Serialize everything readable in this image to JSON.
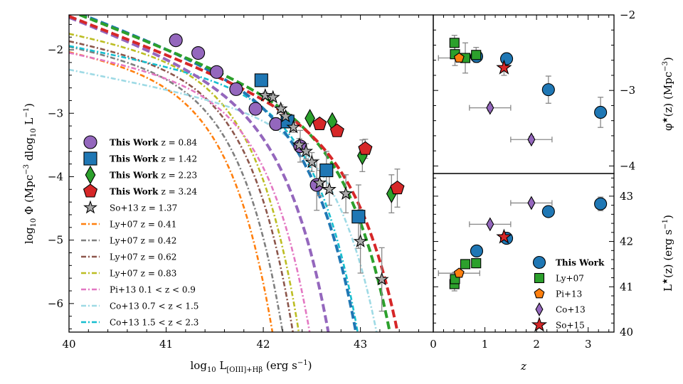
{
  "chart_data": [
    {
      "id": "lf",
      "type": "scatter",
      "xlabel": "log10 L[OIII]+Hβ (erg s−1)",
      "ylabel": "log10 Φ (Mpc−3 dlog10 L−1)",
      "xlim": [
        40.0,
        43.75
      ],
      "ylim": [
        -6.45,
        -1.45
      ],
      "xticks": [
        40,
        41,
        42,
        43
      ],
      "yticks": [
        -2,
        -3,
        -4,
        -5,
        -6
      ],
      "grid": false,
      "legend_position": "left",
      "series": [
        {
          "name": "This Work z = 0.84",
          "kind": "points",
          "marker": "circle",
          "color": "#9467bd",
          "x": [
            41.1,
            41.33,
            41.52,
            41.72,
            41.92,
            42.13,
            42.38,
            42.55
          ],
          "y": [
            -1.85,
            -2.05,
            -2.35,
            -2.62,
            -2.93,
            -3.17,
            -3.52,
            -4.13
          ],
          "yerr": [
            0.05,
            0.05,
            0.05,
            0.06,
            0.08,
            0.1,
            0.25,
            0.4
          ]
        },
        {
          "name": "This Work z = 1.42",
          "kind": "points",
          "marker": "square",
          "color": "#1f77b4",
          "x": [
            41.98,
            42.25,
            42.65,
            42.98
          ],
          "y": [
            -2.48,
            -3.13,
            -3.9,
            -4.63
          ],
          "yerr": [
            0.05,
            0.1,
            0.3,
            0.5
          ]
        },
        {
          "name": "This Work z = 2.23",
          "kind": "points",
          "marker": "diamond",
          "color": "#2ca02c",
          "x": [
            42.48,
            42.71,
            43.02,
            43.32
          ],
          "y": [
            -3.08,
            -3.13,
            -3.67,
            -4.27
          ],
          "yerr": [
            0.05,
            0.07,
            0.25,
            0.3
          ]
        },
        {
          "name": "This Work z = 3.24",
          "kind": "points",
          "marker": "pentagon",
          "color": "#d62728",
          "x": [
            42.58,
            42.76,
            43.05,
            43.38
          ],
          "y": [
            -3.17,
            -3.28,
            -3.56,
            -4.18
          ],
          "yerr": [
            0.05,
            0.07,
            0.15,
            0.3
          ]
        },
        {
          "name": "So+13 z = 1.37",
          "kind": "points",
          "marker": "star",
          "color": "#aaaaaa",
          "x": [
            42.02,
            42.1,
            42.18,
            42.23,
            42.31,
            42.37,
            42.44,
            42.5,
            42.58,
            42.68,
            42.85,
            43.0,
            43.22
          ],
          "y": [
            -2.72,
            -2.75,
            -2.93,
            -3.05,
            -3.22,
            -3.5,
            -3.6,
            -3.77,
            -4.1,
            -4.2,
            -4.27,
            -5.02,
            -5.62
          ],
          "yerr": [
            0.05,
            0.05,
            0.06,
            0.07,
            0.08,
            0.1,
            0.12,
            0.15,
            0.2,
            0.25,
            0.3,
            0.5,
            0.5
          ]
        },
        {
          "name": "Ly+07 z = 0.41",
          "kind": "curve",
          "style": "dashdot",
          "color": "#ff7f0e",
          "Lstar": 41.15,
          "logphi": -2.35,
          "alpha": -1.3
        },
        {
          "name": "Ly+07 z = 0.42",
          "kind": "curve",
          "style": "dashdot",
          "color": "#7f7f7f",
          "Lstar": 41.25,
          "logphi": -2.3,
          "alpha": -1.3
        },
        {
          "name": "Ly+07 z = 0.62",
          "kind": "curve",
          "style": "dashdot",
          "color": "#8c564b",
          "Lstar": 41.35,
          "logphi": -2.25,
          "alpha": -1.3
        },
        {
          "name": "Ly+07 z = 0.83",
          "kind": "curve",
          "style": "dashdot",
          "color": "#bcbd22",
          "Lstar": 41.4,
          "logphi": -2.15,
          "alpha": -1.3
        },
        {
          "name": "Pi+13 0.1 < z < 0.9",
          "kind": "curve",
          "style": "dashdot",
          "color": "#e377c2",
          "Lstar": 41.55,
          "logphi": -2.5,
          "alpha": -1.3
        },
        {
          "name": "Co+13 0.7 < z < 1.5",
          "kind": "curve",
          "style": "dashdot",
          "color": "#9edae5",
          "Lstar": 42.3,
          "logphi": -3.0,
          "alpha": -1.3
        },
        {
          "name": "Co+13 1.5 < z < 2.3",
          "kind": "curve",
          "style": "dashdot",
          "color": "#17becf",
          "Lstar": 42.05,
          "logphi": -2.55,
          "alpha": -1.3
        },
        {
          "name": "This Work z = 0.84 fit",
          "kind": "curve",
          "style": "dashed",
          "color": "#9467bd",
          "Lstar": 41.78,
          "logphi": -2.55,
          "alpha": -1.6
        },
        {
          "name": "This Work z = 1.42 fit",
          "kind": "curve",
          "style": "dashed",
          "color": "#1f77b4",
          "Lstar": 42.07,
          "logphi": -2.6,
          "alpha": -1.6
        },
        {
          "name": "This Work z = 2.23 fit",
          "kind": "curve",
          "style": "dashed",
          "color": "#2ca02c",
          "Lstar": 42.45,
          "logphi": -2.85,
          "alpha": -1.6
        },
        {
          "name": "This Work z = 3.24 fit",
          "kind": "curve",
          "style": "dashed",
          "color": "#d62728",
          "Lstar": 42.55,
          "logphi": -3.0,
          "alpha": -1.6
        }
      ],
      "legend": [
        {
          "label": "This Work",
          "rest": "z = 0.84",
          "marker": "circle",
          "color": "#9467bd"
        },
        {
          "label": "This Work",
          "rest": "z = 1.42",
          "marker": "square",
          "color": "#1f77b4"
        },
        {
          "label": "This Work",
          "rest": "z = 2.23",
          "marker": "diamond",
          "color": "#2ca02c"
        },
        {
          "label": "This Work",
          "rest": "z = 3.24",
          "marker": "pentagon",
          "color": "#d62728"
        },
        {
          "label": "",
          "rest": "So+13 z = 1.37",
          "marker": "star",
          "color": "#aaaaaa"
        },
        {
          "label": "",
          "rest": "Ly+07 z = 0.41",
          "line": "#ff7f0e"
        },
        {
          "label": "",
          "rest": "Ly+07 z = 0.42",
          "line": "#7f7f7f"
        },
        {
          "label": "",
          "rest": "Ly+07 z = 0.62",
          "line": "#8c564b"
        },
        {
          "label": "",
          "rest": "Ly+07 z = 0.83",
          "line": "#bcbd22"
        },
        {
          "label": "",
          "rest": "Pi+13 0.1 < z < 0.9",
          "line": "#e377c2"
        },
        {
          "label": "",
          "rest": "Co+13 0.7 < z < 1.5",
          "line": "#9edae5"
        },
        {
          "label": "",
          "rest": "Co+13 1.5 < z < 2.3",
          "line": "#17becf"
        }
      ]
    },
    {
      "id": "phi",
      "type": "scatter",
      "xlabel": "z",
      "ylabel": "φ★(z) (Mpc−3)",
      "xlim": [
        0,
        3.5
      ],
      "ylim": [
        -4.1,
        -2.0
      ],
      "yticks": [
        -2,
        -3,
        -4
      ],
      "xticks": [],
      "grid": false,
      "series": [
        {
          "name": "This Work",
          "marker": "circle",
          "color": "#1f77b4",
          "x": [
            0.84,
            1.42,
            2.23,
            3.24
          ],
          "y": [
            -2.55,
            -2.58,
            -2.99,
            -3.29
          ],
          "xerr": [
            0.05,
            0.05,
            0.05,
            0.05
          ],
          "yerr": [
            0.03,
            0.07,
            0.18,
            0.2
          ]
        },
        {
          "name": "Ly+07",
          "marker": "square",
          "color": "#2ca02c",
          "x": [
            0.41,
            0.42,
            0.62,
            0.83
          ],
          "y": [
            -2.37,
            -2.52,
            -2.57,
            -2.53
          ],
          "xerr": [
            0,
            0,
            0,
            0
          ],
          "yerr": [
            0.1,
            0.15,
            0.2,
            0.1
          ]
        },
        {
          "name": "Pi+13",
          "marker": "pentagon",
          "color": "#ff7f0e",
          "x": [
            0.5
          ],
          "y": [
            -2.57
          ],
          "xerr": [
            0.4
          ],
          "yerr": [
            0.02
          ]
        },
        {
          "name": "Co+13",
          "marker": "diamond",
          "color": "#9467bd",
          "x": [
            1.1,
            1.9
          ],
          "y": [
            -3.23,
            -3.65
          ],
          "xerr": [
            0.4,
            0.4
          ],
          "yerr": [
            0.04,
            0.04
          ]
        },
        {
          "name": "So+15",
          "marker": "star",
          "color": "#d62728",
          "x": [
            1.37
          ],
          "y": [
            -2.7
          ],
          "xerr": [
            0
          ],
          "yerr": [
            0.1
          ]
        }
      ]
    },
    {
      "id": "lstar",
      "type": "scatter",
      "xlabel": "z",
      "ylabel": "L★(z) (erg s−1)",
      "xlim": [
        0,
        3.5
      ],
      "ylim": [
        40.0,
        43.5
      ],
      "yticks": [
        40,
        41,
        42,
        43
      ],
      "xticks": [
        0,
        1,
        2,
        3
      ],
      "grid": false,
      "legend_position": "bottom-right",
      "series": [
        {
          "name": "This Work",
          "marker": "circle",
          "color": "#1f77b4",
          "x": [
            0.84,
            1.42,
            2.23,
            3.24
          ],
          "y": [
            41.79,
            42.07,
            42.66,
            42.83
          ],
          "xerr": [
            0.05,
            0.05,
            0.05,
            0.05
          ],
          "yerr": [
            0.05,
            0.05,
            0.08,
            0.15
          ]
        },
        {
          "name": "Ly+07",
          "marker": "square",
          "color": "#2ca02c",
          "x": [
            0.41,
            0.42,
            0.62,
            0.83
          ],
          "y": [
            41.06,
            41.17,
            41.5,
            41.52
          ],
          "xerr": [
            0,
            0,
            0,
            0
          ],
          "yerr": [
            0.15,
            0.15,
            0.1,
            0.1
          ]
        },
        {
          "name": "Pi+13",
          "marker": "pentagon",
          "color": "#ff7f0e",
          "x": [
            0.5
          ],
          "y": [
            41.3
          ],
          "xerr": [
            0.4
          ],
          "yerr": [
            0.02
          ]
        },
        {
          "name": "Co+13",
          "marker": "diamond",
          "color": "#9467bd",
          "x": [
            1.1,
            1.9
          ],
          "y": [
            42.38,
            42.85
          ],
          "xerr": [
            0.4,
            0.4
          ],
          "yerr": [
            0.02,
            0.02
          ]
        },
        {
          "name": "So+15",
          "marker": "star",
          "color": "#d62728",
          "x": [
            1.37
          ],
          "y": [
            42.1
          ],
          "xerr": [
            0
          ],
          "yerr": [
            0.05
          ]
        }
      ],
      "legend": [
        {
          "label": "This Work",
          "marker": "circle",
          "color": "#1f77b4"
        },
        {
          "label": "Ly+07",
          "marker": "square",
          "color": "#2ca02c"
        },
        {
          "label": "Pi+13",
          "marker": "pentagon",
          "color": "#ff7f0e"
        },
        {
          "label": "Co+13",
          "marker": "diamond",
          "color": "#9467bd"
        },
        {
          "label": "So+15",
          "marker": "star",
          "color": "#d62728"
        }
      ]
    }
  ]
}
